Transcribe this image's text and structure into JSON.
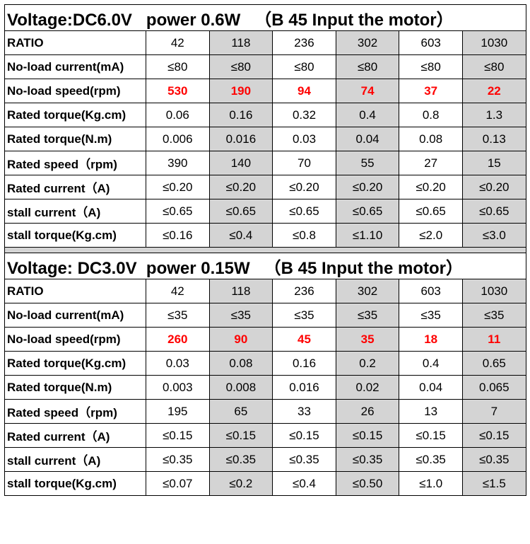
{
  "sections": [
    {
      "title": "Voltage:DC6.0V   power 0.6W   （B 45 Input the motor）",
      "rows": [
        {
          "label": "RATIO",
          "values": [
            "42",
            "118",
            "236",
            "302",
            "603",
            "1030"
          ],
          "highlight": false
        },
        {
          "label": "No-load current(mA)",
          "values": [
            "≤80",
            "≤80",
            "≤80",
            "≤80",
            "≤80",
            "≤80"
          ],
          "highlight": false
        },
        {
          "label": "No-load speed(rpm)",
          "values": [
            "530",
            "190",
            "94",
            "74",
            "37",
            "22"
          ],
          "highlight": true
        },
        {
          "label": "Rated torque(Kg.cm)",
          "values": [
            "0.06",
            "0.16",
            "0.32",
            "0.4",
            "0.8",
            "1.3"
          ],
          "highlight": false
        },
        {
          "label": "Rated torque(N.m)",
          "values": [
            "0.006",
            "0.016",
            "0.03",
            "0.04",
            "0.08",
            "0.13"
          ],
          "highlight": false
        },
        {
          "label": "Rated speed（rpm)",
          "values": [
            "390",
            "140",
            "70",
            "55",
            "27",
            "15"
          ],
          "highlight": false
        },
        {
          "label": "Rated current（A)",
          "values": [
            "≤0.20",
            "≤0.20",
            "≤0.20",
            "≤0.20",
            "≤0.20",
            "≤0.20"
          ],
          "highlight": false
        },
        {
          "label": "stall current（A)",
          "values": [
            "≤0.65",
            "≤0.65",
            "≤0.65",
            "≤0.65",
            "≤0.65",
            "≤0.65"
          ],
          "highlight": false
        },
        {
          "label": "stall torque(Kg.cm)",
          "values": [
            "≤0.16",
            "≤0.4",
            "≤0.8",
            "≤1.10",
            "≤2.0",
            "≤3.0"
          ],
          "highlight": false
        }
      ]
    },
    {
      "title": "Voltage: DC3.0V  power 0.15W   （B 45 Input the motor）",
      "rows": [
        {
          "label": "RATIO",
          "values": [
            "42",
            "118",
            "236",
            "302",
            "603",
            "1030"
          ],
          "highlight": false
        },
        {
          "label": "No-load current(mA)",
          "values": [
            "≤35",
            "≤35",
            "≤35",
            "≤35",
            "≤35",
            "≤35"
          ],
          "highlight": false
        },
        {
          "label": "No-load speed(rpm)",
          "values": [
            "260",
            "90",
            "45",
            "35",
            "18",
            "11"
          ],
          "highlight": true
        },
        {
          "label": "Rated torque(Kg.cm)",
          "values": [
            "0.03",
            "0.08",
            "0.16",
            "0.2",
            "0.4",
            "0.65"
          ],
          "highlight": false
        },
        {
          "label": "Rated torque(N.m)",
          "values": [
            "0.003",
            "0.008",
            "0.016",
            "0.02",
            "0.04",
            "0.065"
          ],
          "highlight": false
        },
        {
          "label": "Rated speed（rpm)",
          "values": [
            "195",
            "65",
            "33",
            "26",
            "13",
            "7"
          ],
          "highlight": false
        },
        {
          "label": "Rated current（A)",
          "values": [
            "≤0.15",
            "≤0.15",
            "≤0.15",
            "≤0.15",
            "≤0.15",
            "≤0.15"
          ],
          "highlight": false
        },
        {
          "label": "stall current（A)",
          "values": [
            "≤0.35",
            "≤0.35",
            "≤0.35",
            "≤0.35",
            "≤0.35",
            "≤0.35"
          ],
          "highlight": false
        },
        {
          "label": "stall torque(Kg.cm)",
          "values": [
            "≤0.07",
            "≤0.2",
            "≤0.4",
            "≤0.50",
            "≤1.0",
            "≤1.5"
          ],
          "highlight": false
        }
      ]
    }
  ],
  "colors": {
    "highlight_text": "#ff0000",
    "shaded_cell": "#d4d4d4",
    "border": "#000000"
  }
}
